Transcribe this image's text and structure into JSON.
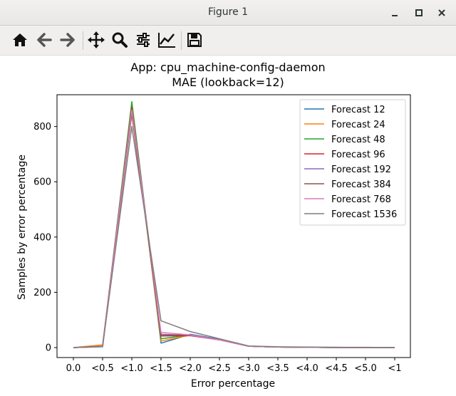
{
  "window": {
    "title": "Figure 1"
  },
  "toolbar": {
    "buttons": [
      "home-icon",
      "back-arrow-icon",
      "forward-arrow-icon",
      "pan-icon",
      "zoom-icon",
      "subplots-icon",
      "edit-axes-icon",
      "save-icon"
    ]
  },
  "chart_data": {
    "type": "line",
    "title": "App: cpu_machine-config-daemon",
    "subtitle": "MAE (lookback=12)",
    "xlabel": "Error percentage",
    "ylabel": "Samples by error percentage",
    "categories": [
      "0.0",
      "<0.5",
      "<1.0",
      "<1.5",
      "<2.0",
      "<2.5",
      "<3.0",
      "<3.5",
      "<4.0",
      "<4.5",
      "<5.0",
      "<1"
    ],
    "yticks": [
      0,
      200,
      400,
      600,
      800
    ],
    "ylim": [
      -36,
      915
    ],
    "grid": false,
    "legend_position": "top-right",
    "series": [
      {
        "name": "Forecast 12",
        "color": "#1f77b4",
        "values": [
          0,
          3,
          880,
          16,
          48,
          30,
          5,
          2,
          1,
          1,
          0,
          0
        ]
      },
      {
        "name": "Forecast 24",
        "color": "#ff7f0e",
        "values": [
          0,
          10,
          870,
          24,
          45,
          28,
          5,
          2,
          1,
          0,
          0,
          0
        ]
      },
      {
        "name": "Forecast 48",
        "color": "#2ca02c",
        "values": [
          0,
          4,
          890,
          32,
          46,
          28,
          5,
          2,
          1,
          0,
          0,
          0
        ]
      },
      {
        "name": "Forecast 96",
        "color": "#d62728",
        "values": [
          0,
          4,
          868,
          42,
          43,
          28,
          5,
          2,
          1,
          0,
          0,
          0
        ]
      },
      {
        "name": "Forecast 192",
        "color": "#9467bd",
        "values": [
          0,
          4,
          855,
          48,
          45,
          28,
          5,
          2,
          1,
          0,
          0,
          0
        ]
      },
      {
        "name": "Forecast 384",
        "color": "#8c564b",
        "values": [
          0,
          5,
          845,
          44,
          46,
          28,
          5,
          2,
          1,
          0,
          0,
          0
        ]
      },
      {
        "name": "Forecast 768",
        "color": "#e377c2",
        "values": [
          0,
          4,
          860,
          55,
          46,
          28,
          5,
          2,
          1,
          0,
          0,
          0
        ]
      },
      {
        "name": "Forecast 1536",
        "color": "#7f7f7f",
        "values": [
          0,
          4,
          800,
          97,
          58,
          32,
          6,
          3,
          2,
          1,
          1,
          0
        ]
      }
    ]
  }
}
